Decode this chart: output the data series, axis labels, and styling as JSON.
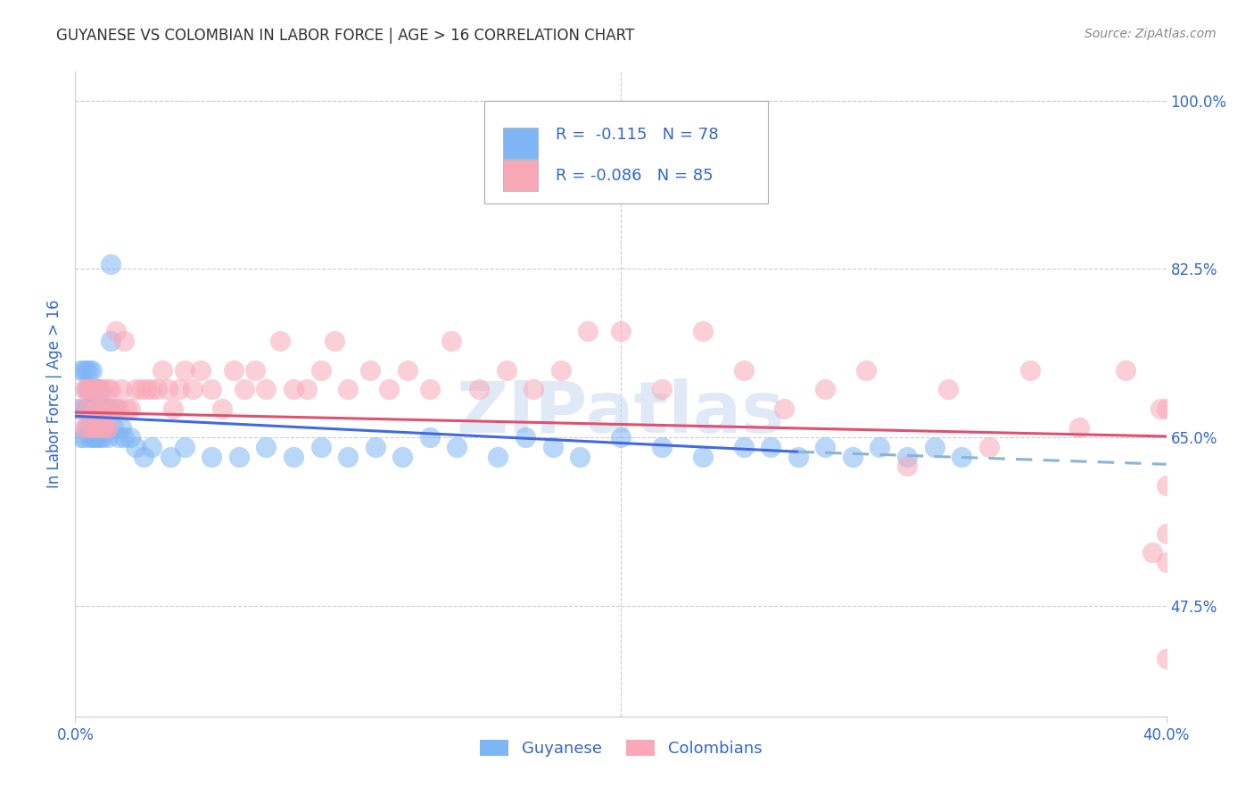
{
  "title": "GUYANESE VS COLOMBIAN IN LABOR FORCE | AGE > 16 CORRELATION CHART",
  "source": "Source: ZipAtlas.com",
  "ylabel": "In Labor Force | Age > 16",
  "xlim": [
    0.0,
    0.4
  ],
  "ylim": [
    0.36,
    1.03
  ],
  "guyanese_color": "#7eb6f5",
  "colombian_color": "#f9a8b8",
  "trendline_guyanese_color": "#4169e1",
  "trendline_colombian_color": "#e05070",
  "trendline_extend_color": "#8ab4d8",
  "legend_color": "#3366cc",
  "R_guyanese": -0.115,
  "N_guyanese": 78,
  "R_colombian": -0.086,
  "N_colombian": 85,
  "guyanese_x": [
    0.001,
    0.002,
    0.002,
    0.003,
    0.003,
    0.003,
    0.004,
    0.004,
    0.004,
    0.004,
    0.005,
    0.005,
    0.005,
    0.005,
    0.005,
    0.006,
    0.006,
    0.006,
    0.006,
    0.006,
    0.006,
    0.007,
    0.007,
    0.007,
    0.007,
    0.008,
    0.008,
    0.008,
    0.008,
    0.009,
    0.009,
    0.009,
    0.009,
    0.01,
    0.01,
    0.011,
    0.011,
    0.012,
    0.012,
    0.013,
    0.013,
    0.014,
    0.015,
    0.016,
    0.017,
    0.018,
    0.02,
    0.022,
    0.025,
    0.028,
    0.035,
    0.04,
    0.05,
    0.06,
    0.07,
    0.08,
    0.09,
    0.1,
    0.11,
    0.12,
    0.13,
    0.14,
    0.155,
    0.165,
    0.175,
    0.185,
    0.2,
    0.215,
    0.23,
    0.245,
    0.255,
    0.265,
    0.275,
    0.285,
    0.295,
    0.305,
    0.315,
    0.325
  ],
  "guyanese_y": [
    0.68,
    0.72,
    0.65,
    0.68,
    0.72,
    0.65,
    0.7,
    0.66,
    0.68,
    0.72,
    0.66,
    0.68,
    0.7,
    0.72,
    0.65,
    0.68,
    0.7,
    0.65,
    0.66,
    0.68,
    0.72,
    0.68,
    0.65,
    0.7,
    0.66,
    0.68,
    0.65,
    0.7,
    0.66,
    0.68,
    0.65,
    0.7,
    0.66,
    0.68,
    0.65,
    0.68,
    0.66,
    0.68,
    0.65,
    0.83,
    0.75,
    0.66,
    0.68,
    0.65,
    0.66,
    0.65,
    0.65,
    0.64,
    0.63,
    0.64,
    0.63,
    0.64,
    0.63,
    0.63,
    0.64,
    0.63,
    0.64,
    0.63,
    0.64,
    0.63,
    0.65,
    0.64,
    0.63,
    0.65,
    0.64,
    0.63,
    0.65,
    0.64,
    0.63,
    0.64,
    0.64,
    0.63,
    0.64,
    0.63,
    0.64,
    0.63,
    0.64,
    0.63
  ],
  "colombian_x": [
    0.002,
    0.003,
    0.003,
    0.004,
    0.004,
    0.005,
    0.005,
    0.006,
    0.006,
    0.007,
    0.007,
    0.007,
    0.008,
    0.008,
    0.009,
    0.009,
    0.01,
    0.01,
    0.011,
    0.011,
    0.012,
    0.012,
    0.013,
    0.013,
    0.014,
    0.015,
    0.016,
    0.017,
    0.018,
    0.019,
    0.02,
    0.022,
    0.024,
    0.026,
    0.028,
    0.03,
    0.032,
    0.034,
    0.036,
    0.038,
    0.04,
    0.043,
    0.046,
    0.05,
    0.054,
    0.058,
    0.062,
    0.066,
    0.07,
    0.075,
    0.08,
    0.085,
    0.09,
    0.095,
    0.1,
    0.108,
    0.115,
    0.122,
    0.13,
    0.138,
    0.148,
    0.158,
    0.168,
    0.178,
    0.188,
    0.2,
    0.215,
    0.23,
    0.245,
    0.26,
    0.275,
    0.29,
    0.305,
    0.32,
    0.335,
    0.35,
    0.368,
    0.385,
    0.395,
    0.398,
    0.4,
    0.4,
    0.4,
    0.4,
    0.4
  ],
  "colombian_y": [
    0.68,
    0.7,
    0.66,
    0.7,
    0.66,
    0.68,
    0.7,
    0.66,
    0.7,
    0.68,
    0.7,
    0.66,
    0.68,
    0.7,
    0.66,
    0.68,
    0.66,
    0.7,
    0.68,
    0.66,
    0.7,
    0.66,
    0.68,
    0.7,
    0.68,
    0.76,
    0.68,
    0.7,
    0.75,
    0.68,
    0.68,
    0.7,
    0.7,
    0.7,
    0.7,
    0.7,
    0.72,
    0.7,
    0.68,
    0.7,
    0.72,
    0.7,
    0.72,
    0.7,
    0.68,
    0.72,
    0.7,
    0.72,
    0.7,
    0.75,
    0.7,
    0.7,
    0.72,
    0.75,
    0.7,
    0.72,
    0.7,
    0.72,
    0.7,
    0.75,
    0.7,
    0.72,
    0.7,
    0.72,
    0.76,
    0.76,
    0.7,
    0.76,
    0.72,
    0.68,
    0.7,
    0.72,
    0.62,
    0.7,
    0.64,
    0.72,
    0.66,
    0.72,
    0.53,
    0.68,
    0.55,
    0.68,
    0.6,
    0.52,
    0.42
  ],
  "background_color": "#ffffff",
  "grid_color": "#cccccc",
  "title_color": "#333333",
  "axis_label_color": "#3366cc",
  "watermark_text": "ZIPatlas",
  "watermark_color": "#c8d8f0",
  "watermark_alpha": 0.55
}
